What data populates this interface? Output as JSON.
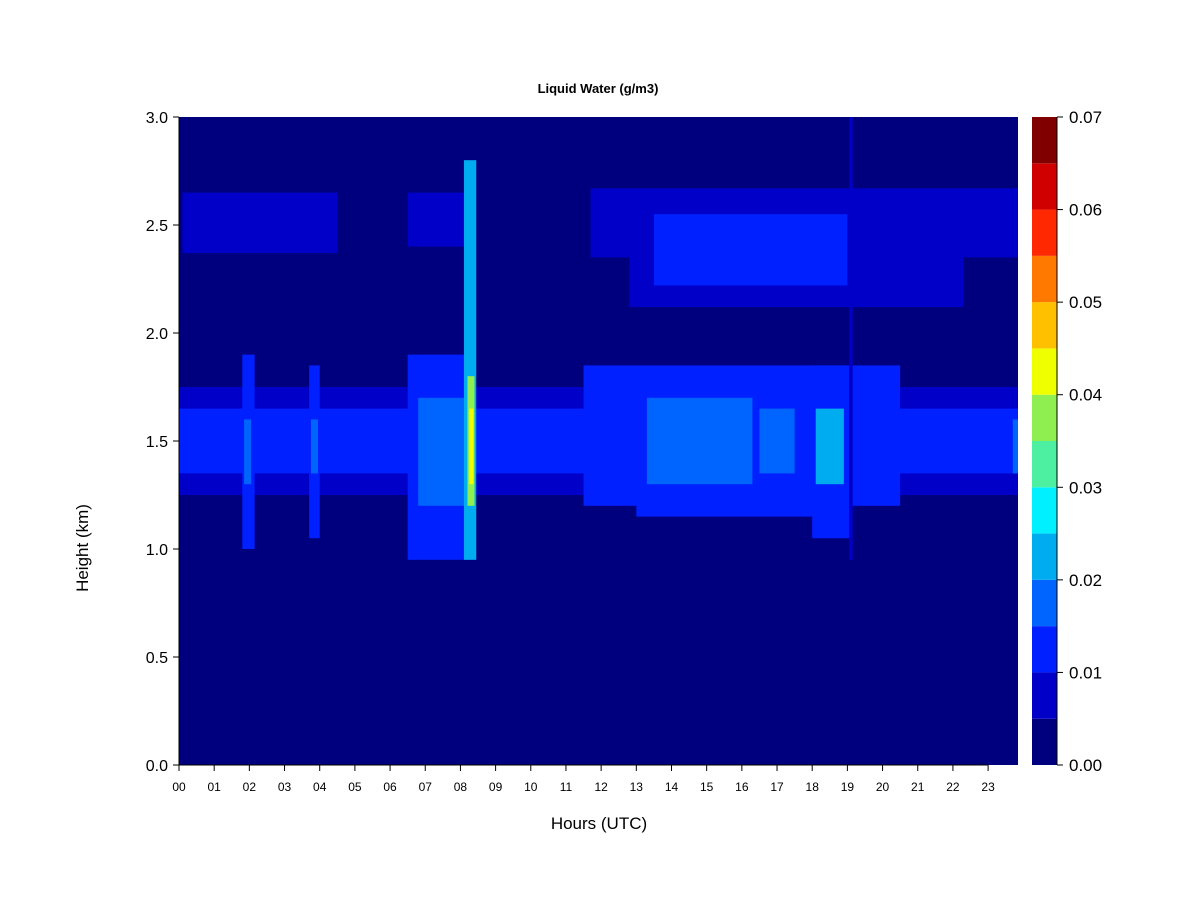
{
  "chart_data": {
    "type": "heatmap",
    "title": "Liquid Water (g/m3)",
    "xlabel": "Hours (UTC)",
    "ylabel": "Height (km)",
    "x_ticks": [
      "00",
      "01",
      "02",
      "03",
      "04",
      "05",
      "06",
      "07",
      "08",
      "09",
      "10",
      "11",
      "12",
      "13",
      "14",
      "15",
      "16",
      "17",
      "18",
      "19",
      "20",
      "21",
      "22",
      "23"
    ],
    "xlim": [
      0,
      23.85
    ],
    "y_ticks": [
      "0.0",
      "0.5",
      "1.0",
      "1.5",
      "2.0",
      "2.5",
      "3.0"
    ],
    "ylim": [
      0.0,
      3.0
    ],
    "colorbar": {
      "ticks": [
        "0.00",
        "0.01",
        "0.02",
        "0.03",
        "0.04",
        "0.05",
        "0.06",
        "0.07"
      ],
      "range": [
        0.0,
        0.07
      ],
      "levels": [
        0.0,
        0.005,
        0.01,
        0.015,
        0.02,
        0.025,
        0.03,
        0.035,
        0.04,
        0.045,
        0.05,
        0.055,
        0.06,
        0.065,
        0.07
      ],
      "colors": [
        "#00007f",
        "#0000c8",
        "#0020ff",
        "#0064ff",
        "#00acf0",
        "#00f0ff",
        "#4cf0a0",
        "#90ef50",
        "#f0ff00",
        "#ffc000",
        "#ff7800",
        "#ff2800",
        "#d00000",
        "#800000"
      ]
    },
    "background_value": 0.0,
    "layers": [
      {
        "x_start": 0.0,
        "x_end": 23.85,
        "y_bottom": 1.25,
        "y_top": 1.75,
        "value": 0.009
      },
      {
        "x_start": 0.0,
        "x_end": 23.85,
        "y_bottom": 1.35,
        "y_top": 1.65,
        "value": 0.012
      },
      {
        "x_start": 0.1,
        "x_end": 4.5,
        "y_bottom": 2.37,
        "y_top": 2.65,
        "value": 0.006
      },
      {
        "x_start": 6.5,
        "x_end": 8.1,
        "y_bottom": 2.4,
        "y_top": 2.65,
        "value": 0.007
      },
      {
        "x_start": 11.7,
        "x_end": 23.85,
        "y_bottom": 2.35,
        "y_top": 2.67,
        "value": 0.007
      },
      {
        "x_start": 12.8,
        "x_end": 22.3,
        "y_bottom": 2.12,
        "y_top": 2.6,
        "value": 0.008
      },
      {
        "x_start": 13.5,
        "x_end": 19.0,
        "y_bottom": 2.22,
        "y_top": 2.55,
        "value": 0.011
      },
      {
        "x_start": 6.5,
        "x_end": 8.4,
        "y_bottom": 0.95,
        "y_top": 1.9,
        "value": 0.013
      },
      {
        "x_start": 6.8,
        "x_end": 8.2,
        "y_bottom": 1.2,
        "y_top": 1.7,
        "value": 0.019
      },
      {
        "x_start": 8.1,
        "x_end": 8.45,
        "y_bottom": 0.95,
        "y_top": 2.8,
        "value": 0.02
      },
      {
        "x_start": 8.2,
        "x_end": 8.4,
        "y_bottom": 1.2,
        "y_top": 1.8,
        "value": 0.035
      },
      {
        "x_start": 8.25,
        "x_end": 8.37,
        "y_bottom": 1.3,
        "y_top": 1.65,
        "value": 0.043
      },
      {
        "x_start": 11.5,
        "x_end": 20.5,
        "y_bottom": 1.2,
        "y_top": 1.85,
        "value": 0.01
      },
      {
        "x_start": 13.0,
        "x_end": 19.1,
        "y_bottom": 1.15,
        "y_top": 1.8,
        "value": 0.011
      },
      {
        "x_start": 13.3,
        "x_end": 16.3,
        "y_bottom": 1.3,
        "y_top": 1.7,
        "value": 0.016
      },
      {
        "x_start": 16.5,
        "x_end": 17.5,
        "y_bottom": 1.35,
        "y_top": 1.65,
        "value": 0.017
      },
      {
        "x_start": 18.0,
        "x_end": 19.1,
        "y_bottom": 1.05,
        "y_top": 1.85,
        "value": 0.014
      },
      {
        "x_start": 18.1,
        "x_end": 18.9,
        "y_bottom": 1.3,
        "y_top": 1.65,
        "value": 0.021
      },
      {
        "x_start": 1.8,
        "x_end": 2.15,
        "y_bottom": 1.0,
        "y_top": 1.9,
        "value": 0.013
      },
      {
        "x_start": 1.85,
        "x_end": 2.05,
        "y_bottom": 1.3,
        "y_top": 1.6,
        "value": 0.019
      },
      {
        "x_start": 3.7,
        "x_end": 4.0,
        "y_bottom": 1.05,
        "y_top": 1.85,
        "value": 0.012
      },
      {
        "x_start": 3.75,
        "x_end": 3.95,
        "y_bottom": 1.35,
        "y_top": 1.6,
        "value": 0.016
      },
      {
        "x_start": 19.05,
        "x_end": 19.15,
        "y_bottom": 0.95,
        "y_top": 3.0,
        "value": 0.008
      },
      {
        "x_start": 23.7,
        "x_end": 23.85,
        "y_bottom": 1.35,
        "y_top": 1.6,
        "value": 0.016
      }
    ]
  }
}
